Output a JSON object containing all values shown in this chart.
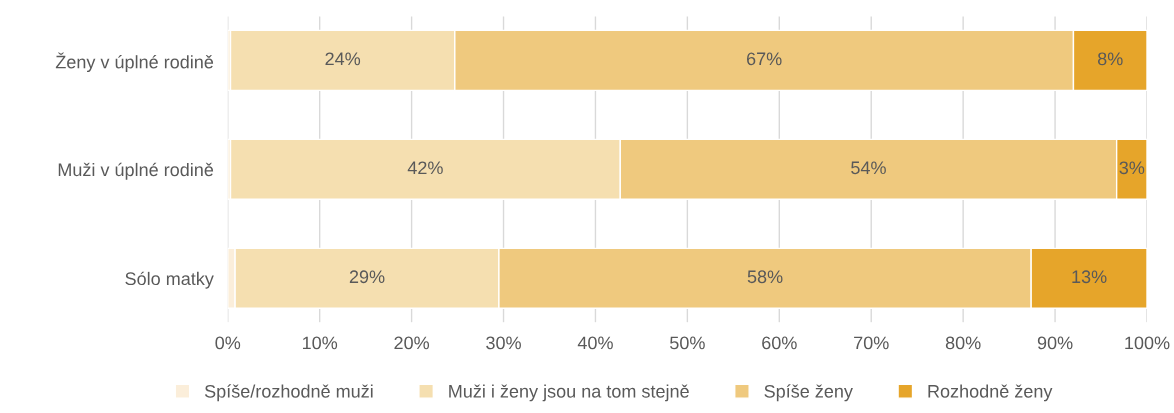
{
  "chart_data": {
    "type": "bar",
    "orientation": "horizontal",
    "stacked": true,
    "categories": [
      "Ženy v úplné rodině",
      "Muži v úplné rodině",
      "Sólo matky"
    ],
    "series": [
      {
        "name": "Spíše/rozhodně muži",
        "color": "#fbeeda",
        "values": [
          0.3,
          0.3,
          0.8
        ]
      },
      {
        "name": "Muži i ženy jsou na tom stejně",
        "color": "#f5dfb0",
        "values": [
          24.4,
          42.4,
          28.7
        ],
        "value_labels": [
          "24%",
          "42%",
          "29%"
        ]
      },
      {
        "name": "Spíše ženy",
        "color": "#efc97e",
        "values": [
          67.3,
          54.0,
          57.9
        ],
        "value_labels": [
          "67%",
          "54%",
          "58%"
        ]
      },
      {
        "name": "Rozhodně ženy",
        "color": "#e6a52a",
        "values": [
          8.0,
          3.3,
          12.6
        ],
        "value_labels": [
          "8%",
          "3%",
          "13%"
        ]
      }
    ],
    "xlim": [
      0,
      100
    ],
    "xticks": [
      {
        "value": 0,
        "label": "0%"
      },
      {
        "value": 10,
        "label": "10%"
      },
      {
        "value": 20,
        "label": "20%"
      },
      {
        "value": 30,
        "label": "30%"
      },
      {
        "value": 40,
        "label": "40%"
      },
      {
        "value": 50,
        "label": "50%"
      },
      {
        "value": 60,
        "label": "60%"
      },
      {
        "value": 70,
        "label": "70%"
      },
      {
        "value": 80,
        "label": "80%"
      },
      {
        "value": 90,
        "label": "90%"
      },
      {
        "value": 100,
        "label": "100%"
      }
    ],
    "grid": "x",
    "legend": "bottom"
  }
}
